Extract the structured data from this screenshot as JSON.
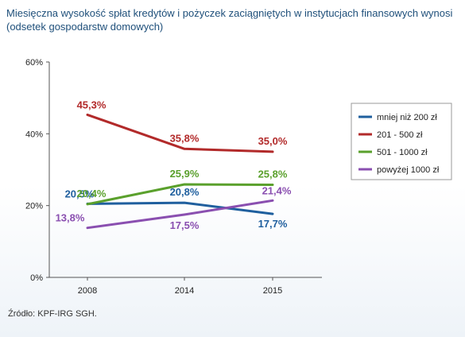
{
  "title": {
    "line1": "Miesięczna wysokość spłat kredytów i pożyczek zaciągniętych w instytucjach finansowych wynosi",
    "line2": "(odsetek gospodarstw domowych)"
  },
  "source": "Źródło: KPF-IRG SGH.",
  "chart_data": {
    "type": "line",
    "title": "Miesięczna wysokość spłat kredytów i pożyczek zaciągniętych w instytucjach finansowych wynosi (odsetek gospodarstw domowych)",
    "xlabel": "",
    "ylabel": "",
    "x": [
      "2008",
      "2014",
      "2015"
    ],
    "ylim": [
      0,
      60
    ],
    "yticks": [
      "0%",
      "20%",
      "40%",
      "60%"
    ],
    "grid": false,
    "legend_position": "right",
    "series": [
      {
        "name": "mniej niż 200 zł",
        "color": "#1f5f9e",
        "values": [
          20.5,
          20.8,
          17.7
        ],
        "labels": [
          "20,5%",
          "20,8%",
          "17,7%"
        ]
      },
      {
        "name": "201 - 500 zł",
        "color": "#b22a2a",
        "values": [
          45.3,
          35.8,
          35.0
        ],
        "labels": [
          "45,3%",
          "35,8%",
          "35,0%"
        ]
      },
      {
        "name": "501 - 1000 zł",
        "color": "#5aa02c",
        "values": [
          20.4,
          25.9,
          25.8
        ],
        "labels": [
          "20,4%",
          "25,9%",
          "25,8%"
        ]
      },
      {
        "name": "powyżej 1000 zł",
        "color": "#8a4fb0",
        "values": [
          13.8,
          17.5,
          21.4
        ],
        "labels": [
          "13,8%",
          "17,5%",
          "21,4%"
        ]
      }
    ]
  }
}
